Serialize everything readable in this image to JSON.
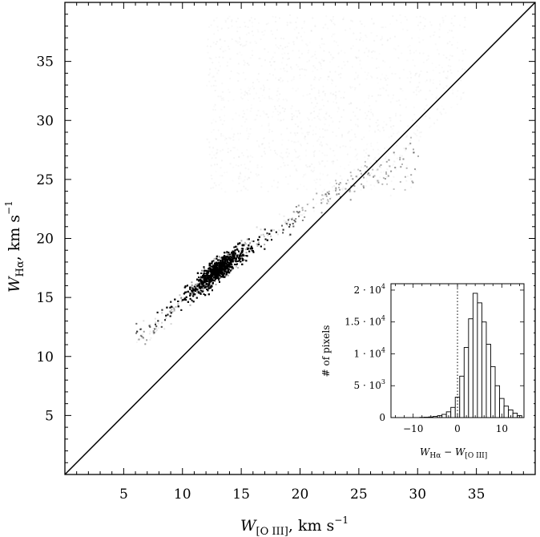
{
  "chart_data": [
    {
      "type": "heatmap",
      "title": "",
      "xlabel": "W_[O III],   km s^-1",
      "ylabel": "W_Hα,   km s^-1",
      "xlabel_parts": {
        "main": "W",
        "sub": "[O III]",
        "tail": ",   km s",
        "sup": "−1"
      },
      "ylabel_parts": {
        "main": "W",
        "sub": "Hα",
        "tail": ",   km s",
        "sup": "−1"
      },
      "xlim": [
        0,
        40
      ],
      "ylim": [
        0,
        40
      ],
      "xticks": [
        5,
        10,
        15,
        20,
        25,
        30,
        35
      ],
      "yticks": [
        5,
        10,
        15,
        20,
        25,
        30,
        35
      ],
      "minor_step": 1,
      "grid": false,
      "reference_line": {
        "label": "",
        "slope": 1,
        "intercept": 0
      },
      "density": {
        "ridge": [
          [
            7,
            12
          ],
          [
            10,
            15
          ],
          [
            13,
            17.5
          ],
          [
            16,
            19.5
          ],
          [
            19,
            21.5
          ],
          [
            22,
            23.5
          ],
          [
            26,
            26
          ]
        ],
        "core_center": [
          13,
          17
        ],
        "color": "#000000"
      }
    },
    {
      "type": "bar",
      "title": "",
      "xlabel": "W_Hα − W_[O III]",
      "xlabel_parts": {
        "a": "W",
        "a_sub": "Hα",
        "mid": " − ",
        "b": "W",
        "b_sub": "[O III]"
      },
      "ylabel": "# of pixels",
      "xlim": [
        -15,
        15
      ],
      "ylim": [
        0,
        21000
      ],
      "xticks": [
        -10,
        0,
        10
      ],
      "yticks": [
        0,
        5000,
        10000,
        15000,
        20000
      ],
      "ytick_labels": [
        {
          "value": 0,
          "mant": "0",
          "exp": ""
        },
        {
          "value": 5000,
          "mant": "5 · 10",
          "exp": "3"
        },
        {
          "value": 10000,
          "mant": "1 · 10",
          "exp": "4"
        },
        {
          "value": 15000,
          "mant": "1.5 · 10",
          "exp": "4"
        },
        {
          "value": 20000,
          "mant": "2 · 10",
          "exp": "4"
        }
      ],
      "bin_width": 1,
      "x": [
        -8,
        -7,
        -6,
        -5,
        -4,
        -3,
        -2,
        -1,
        0,
        1,
        2,
        3,
        4,
        5,
        6,
        7,
        8,
        9,
        10,
        11,
        12,
        13,
        14
      ],
      "values": [
        40,
        60,
        100,
        180,
        300,
        500,
        900,
        1600,
        3200,
        6500,
        11000,
        15500,
        19500,
        18000,
        15000,
        11500,
        8000,
        5000,
        3000,
        1800,
        1200,
        700,
        300
      ],
      "zero_line": {
        "x": 0,
        "style": "dotted"
      }
    }
  ]
}
